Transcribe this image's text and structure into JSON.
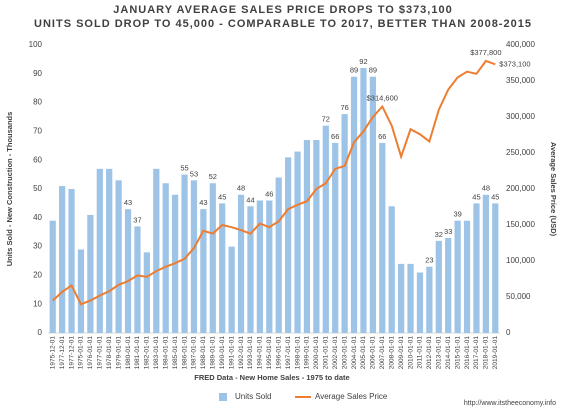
{
  "chart_data": {
    "type": "bar-line",
    "title": [
      "JANUARY AVERAGE SALES PRICE DROPS TO $373,100",
      "UNITS SOLD DROP TO 45,000 - COMPARABLE TO 2017, BETTER THAN 2008-2015"
    ],
    "x_label": "FRED Data - New Home Sales - 1975 to date",
    "y_label": "Units Sold - New Construction - Thousands",
    "y2_label": "Average Sales Price (USD)",
    "source": "http://www.itstheeconomy.info",
    "categories": [
      "1975-12-01",
      "1977-12-01",
      "1977-12-01",
      "1975-01-01",
      "1976-01-01",
      "1977-01-01",
      "1978-01-01",
      "1979-01-01",
      "1980-01-01",
      "1981-01-01",
      "1982-01-01",
      "1983-01-01",
      "1984-01-01",
      "1985-01-01",
      "1986-01-01",
      "1987-01-01",
      "1988-01-01",
      "1989-01-01",
      "1990-01-01",
      "1991-01-01",
      "1992-01-01",
      "1993-01-01",
      "1994-01-01",
      "1995-01-01",
      "1996-01-01",
      "1997-01-01",
      "1998-01-01",
      "1999-01-01",
      "2000-01-01",
      "2001-01-01",
      "2002-01-01",
      "2003-01-01",
      "2004-01-01",
      "2005-01-01",
      "2006-01-01",
      "2007-01-01",
      "2008-01-01",
      "2009-01-01",
      "2010-01-01",
      "2011-01-01",
      "2012-01-01",
      "2013-01-01",
      "2014-01-01",
      "2015-01-01",
      "2016-01-01",
      "2017-01-01",
      "2018-01-01",
      "2019-01-01"
    ],
    "series": [
      {
        "name": "Units Sold",
        "color": "#9dc3e6",
        "values": [
          39,
          51,
          50,
          29,
          41,
          57,
          57,
          53,
          43,
          37,
          28,
          57,
          52,
          48,
          55,
          53,
          43,
          52,
          45,
          30,
          48,
          44,
          46,
          46,
          54,
          61,
          63,
          67,
          67,
          72,
          66,
          76,
          89,
          92,
          89,
          66,
          44,
          24,
          24,
          21,
          23,
          32,
          33,
          39,
          39,
          45,
          48,
          45
        ],
        "value_labels": [
          null,
          null,
          null,
          null,
          null,
          null,
          null,
          null,
          43,
          37,
          null,
          null,
          null,
          null,
          55,
          53,
          43,
          52,
          45,
          null,
          48,
          44,
          null,
          46,
          null,
          null,
          null,
          null,
          null,
          72,
          66,
          76,
          89,
          92,
          89,
          66,
          null,
          null,
          null,
          null,
          23,
          32,
          33,
          39,
          null,
          45,
          48,
          45
        ]
      },
      {
        "name": "Average Sales Price",
        "color": "#ed7d31",
        "axis": "y2",
        "values": [
          45000,
          57000,
          66000,
          40000,
          45000,
          52000,
          58000,
          67000,
          72000,
          80000,
          78000,
          86000,
          92000,
          97000,
          103000,
          118000,
          142000,
          138000,
          150000,
          147000,
          143000,
          138000,
          152000,
          147000,
          155000,
          172000,
          178000,
          183000,
          200000,
          208000,
          228000,
          232000,
          265000,
          280000,
          300000,
          314600,
          288000,
          245000,
          283000,
          276000,
          266000,
          310000,
          338000,
          355000,
          363000,
          360000,
          377800,
          373100
        ],
        "value_labels": [
          null,
          null,
          null,
          null,
          null,
          null,
          null,
          null,
          null,
          null,
          null,
          null,
          null,
          null,
          null,
          null,
          null,
          null,
          null,
          null,
          null,
          null,
          null,
          null,
          null,
          null,
          null,
          null,
          null,
          null,
          null,
          null,
          null,
          null,
          null,
          "$314,600",
          null,
          null,
          null,
          null,
          null,
          null,
          null,
          null,
          null,
          null,
          "$377,800",
          "$373,100"
        ]
      }
    ],
    "ylim": [
      0,
      100
    ],
    "yticks": [
      0,
      10,
      20,
      30,
      40,
      50,
      60,
      70,
      80,
      90,
      100
    ],
    "y2lim": [
      0,
      400000
    ],
    "y2ticks": [
      0,
      {
        "value": 50000,
        "label": "50,000"
      },
      {
        "value": 100000,
        "label": "100,000"
      },
      {
        "value": 150000,
        "label": "150,000"
      },
      {
        "value": 200000,
        "label": "200,000"
      },
      {
        "value": 250000,
        "label": "250,000"
      },
      {
        "value": 300000,
        "label": "300,000"
      },
      {
        "value": 350000,
        "label": "350,000"
      },
      {
        "value": 400000,
        "label": "400,000"
      }
    ],
    "legend": "bottom"
  }
}
